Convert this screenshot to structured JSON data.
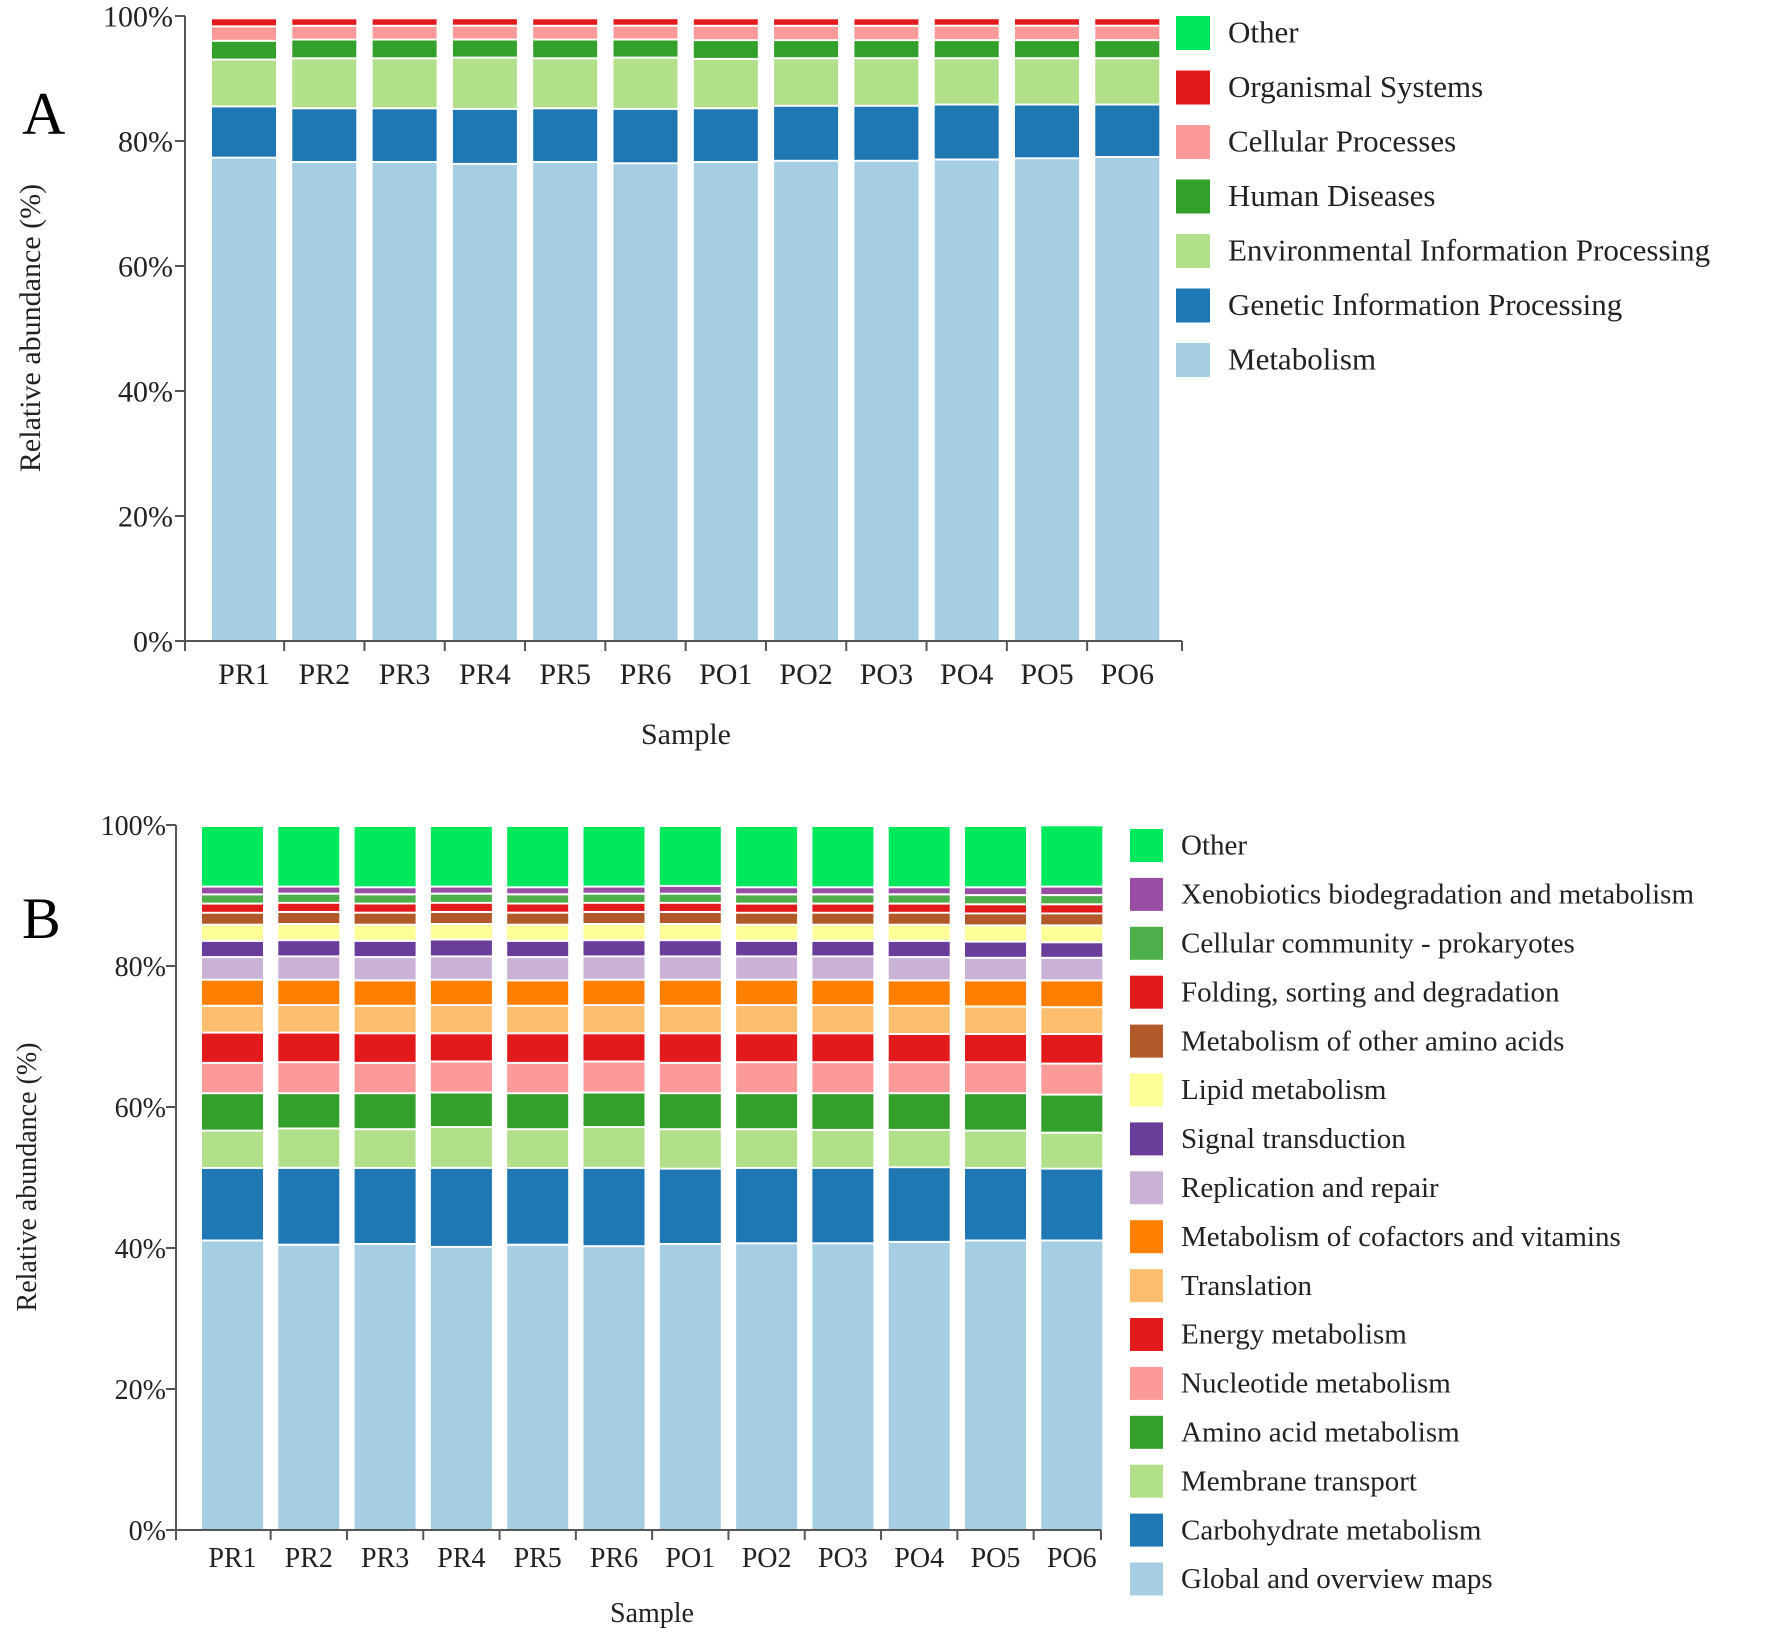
{
  "figure": {
    "panels": [
      {
        "letter": "A"
      },
      {
        "letter": "B"
      }
    ]
  },
  "chart_data": [
    {
      "type": "bar",
      "stacked": true,
      "panel": "A",
      "title": "",
      "xlabel": "Sample",
      "ylabel": "Relative abundance (%)",
      "ylim": [
        0,
        100
      ],
      "yticks": [
        "0%",
        "20%",
        "40%",
        "60%",
        "80%",
        "100%"
      ],
      "grid": false,
      "legend_position": "right",
      "categories": [
        "PR1",
        "PR2",
        "PR3",
        "PR4",
        "PR5",
        "PR6",
        "PO1",
        "PO2",
        "PO3",
        "PO4",
        "PO5",
        "PO6"
      ],
      "series": [
        {
          "name": "Metabolism",
          "color": "#a6cee3",
          "values": [
            77.5,
            76.8,
            76.8,
            76.5,
            76.8,
            76.6,
            76.8,
            77.0,
            77.0,
            77.2,
            77.4,
            77.6
          ]
        },
        {
          "name": "Genetic Information Processing",
          "color": "#1f78b4",
          "values": [
            8.2,
            8.6,
            8.6,
            8.8,
            8.6,
            8.7,
            8.6,
            8.8,
            8.8,
            8.8,
            8.6,
            8.4
          ]
        },
        {
          "name": "Environmental Information Processing",
          "color": "#b2df8a",
          "values": [
            7.5,
            8.0,
            8.0,
            8.2,
            8.0,
            8.2,
            7.9,
            7.6,
            7.6,
            7.4,
            7.4,
            7.4
          ]
        },
        {
          "name": "Human Diseases",
          "color": "#33a02c",
          "values": [
            3.0,
            3.0,
            3.0,
            2.9,
            3.0,
            2.9,
            3.0,
            2.9,
            2.9,
            2.9,
            2.9,
            2.9
          ]
        },
        {
          "name": "Cellular Processes",
          "color": "#fb9a99",
          "values": [
            2.3,
            2.2,
            2.2,
            2.2,
            2.2,
            2.2,
            2.3,
            2.3,
            2.3,
            2.3,
            2.3,
            2.3
          ]
        },
        {
          "name": "Organismal Systems",
          "color": "#e31a1c",
          "values": [
            1.3,
            1.2,
            1.2,
            1.2,
            1.2,
            1.2,
            1.2,
            1.2,
            1.2,
            1.2,
            1.2,
            1.2
          ]
        },
        {
          "name": "Other",
          "color": "#00e85b",
          "values": [
            0.2,
            0.2,
            0.2,
            0.2,
            0.2,
            0.2,
            0.2,
            0.2,
            0.2,
            0.2,
            0.2,
            0.2
          ]
        }
      ]
    },
    {
      "type": "bar",
      "stacked": true,
      "panel": "B",
      "title": "",
      "xlabel": "Sample",
      "ylabel": "Relative abundance (%)",
      "ylim": [
        0,
        100
      ],
      "yticks": [
        "0%",
        "20%",
        "40%",
        "60%",
        "80%",
        "100%"
      ],
      "grid": false,
      "legend_position": "right",
      "categories": [
        "PR1",
        "PR2",
        "PR3",
        "PR4",
        "PR5",
        "PR6",
        "PO1",
        "PO2",
        "PO3",
        "PO4",
        "PO5",
        "PO6"
      ],
      "series": [
        {
          "name": "Global and overview maps",
          "color": "#a6cee3",
          "values": [
            41.2,
            40.6,
            40.7,
            40.3,
            40.6,
            40.4,
            40.7,
            40.8,
            40.8,
            41.0,
            41.2,
            41.2
          ]
        },
        {
          "name": "Carbohydrate metabolism",
          "color": "#1f78b4",
          "values": [
            10.3,
            10.9,
            10.8,
            11.2,
            10.9,
            11.1,
            10.7,
            10.7,
            10.7,
            10.6,
            10.3,
            10.2
          ]
        },
        {
          "name": "Membrane transport",
          "color": "#b2df8a",
          "values": [
            5.3,
            5.6,
            5.5,
            5.8,
            5.5,
            5.8,
            5.6,
            5.5,
            5.4,
            5.3,
            5.3,
            5.1
          ]
        },
        {
          "name": "Amino acid metabolism",
          "color": "#33a02c",
          "values": [
            5.3,
            5.0,
            5.1,
            4.9,
            5.1,
            4.9,
            5.1,
            5.1,
            5.2,
            5.2,
            5.3,
            5.4
          ]
        },
        {
          "name": "Nucleotide metabolism",
          "color": "#fb9a99",
          "values": [
            4.3,
            4.4,
            4.3,
            4.4,
            4.3,
            4.4,
            4.3,
            4.4,
            4.4,
            4.4,
            4.4,
            4.4
          ]
        },
        {
          "name": "Energy metabolism",
          "color": "#e31a1c",
          "values": [
            4.3,
            4.2,
            4.2,
            4.0,
            4.2,
            4.0,
            4.2,
            4.1,
            4.1,
            4.0,
            4.0,
            4.2
          ]
        },
        {
          "name": "Translation",
          "color": "#fdbf6f",
          "values": [
            3.8,
            3.9,
            3.9,
            4.0,
            3.9,
            4.0,
            3.9,
            4.0,
            4.0,
            4.0,
            3.9,
            3.8
          ]
        },
        {
          "name": "Metabolism of cofactors and vitamins",
          "color": "#ff7f00",
          "values": [
            3.7,
            3.6,
            3.6,
            3.6,
            3.6,
            3.6,
            3.7,
            3.6,
            3.6,
            3.6,
            3.7,
            3.8
          ]
        },
        {
          "name": "Replication and repair",
          "color": "#cab2d6",
          "values": [
            3.2,
            3.3,
            3.3,
            3.3,
            3.3,
            3.3,
            3.3,
            3.3,
            3.3,
            3.3,
            3.2,
            3.2
          ]
        },
        {
          "name": "Signal transduction",
          "color": "#6a3d9a",
          "values": [
            2.3,
            2.3,
            2.3,
            2.4,
            2.3,
            2.3,
            2.3,
            2.2,
            2.2,
            2.3,
            2.3,
            2.2
          ]
        },
        {
          "name": "Lipid metabolism",
          "color": "#ffff99",
          "values": [
            2.3,
            2.3,
            2.3,
            2.2,
            2.3,
            2.3,
            2.3,
            2.3,
            2.3,
            2.3,
            2.3,
            2.4
          ]
        },
        {
          "name": "Metabolism of other amino acids",
          "color": "#b15928",
          "values": [
            1.7,
            1.7,
            1.7,
            1.7,
            1.7,
            1.7,
            1.7,
            1.7,
            1.7,
            1.7,
            1.7,
            1.7
          ]
        },
        {
          "name": "Folding, sorting and degradation",
          "color": "#e31a1c",
          "values": [
            1.3,
            1.3,
            1.3,
            1.3,
            1.3,
            1.3,
            1.3,
            1.3,
            1.3,
            1.3,
            1.3,
            1.3
          ]
        },
        {
          "name": "Cellular community - prokaryotes",
          "color": "#4daf4a",
          "values": [
            1.3,
            1.3,
            1.3,
            1.3,
            1.3,
            1.3,
            1.3,
            1.3,
            1.3,
            1.3,
            1.3,
            1.3
          ]
        },
        {
          "name": "Xenobiotics biodegradation and metabolism",
          "color": "#984ea3",
          "values": [
            1.1,
            1.0,
            1.0,
            1.0,
            1.0,
            1.0,
            1.1,
            1.0,
            1.0,
            1.0,
            1.1,
            1.2
          ]
        },
        {
          "name": "Other",
          "color": "#00e85b",
          "values": [
            8.6,
            8.6,
            8.7,
            8.6,
            8.7,
            8.6,
            8.5,
            8.7,
            8.7,
            8.7,
            8.7,
            8.7
          ]
        }
      ]
    }
  ]
}
